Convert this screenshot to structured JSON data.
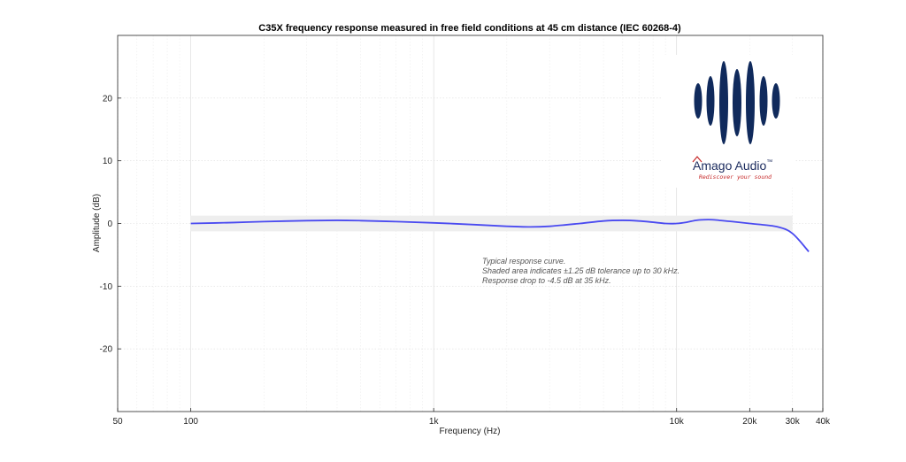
{
  "chart_data": {
    "type": "line",
    "title": "C35X frequency response measured in free field conditions at 45 cm distance (IEC 60268-4)",
    "xlabel": "Frequency (Hz)",
    "ylabel": "Amplitude (dB)",
    "xscale": "log",
    "xlim": [
      50,
      40000
    ],
    "ylim": [
      -30,
      30
    ],
    "xticks": [
      50,
      100,
      1000,
      10000,
      20000,
      30000,
      40000
    ],
    "xtick_labels": [
      "50",
      "100",
      "1k",
      "10k",
      "20k",
      "30k",
      "40k"
    ],
    "yticks": [
      -20,
      -10,
      0,
      10,
      20
    ],
    "ytick_labels": [
      "-20",
      "-10",
      "0",
      "10",
      "20"
    ],
    "grid": true,
    "series": [
      {
        "color": "#4a4af0",
        "x": [
          100,
          150,
          200,
          300,
          400,
          500,
          700,
          1000,
          1500,
          2000,
          2500,
          3000,
          4000,
          5000,
          6000,
          7000,
          8000,
          9000,
          10000,
          11000,
          12000,
          13000,
          14000,
          15000,
          17000,
          20000,
          25000,
          28000,
          30000,
          32000,
          35000
        ],
        "y": [
          0.0,
          0.15,
          0.3,
          0.45,
          0.5,
          0.45,
          0.3,
          0.1,
          -0.2,
          -0.45,
          -0.55,
          -0.45,
          0.0,
          0.4,
          0.5,
          0.4,
          0.2,
          0.0,
          0.0,
          0.2,
          0.5,
          0.6,
          0.6,
          0.5,
          0.3,
          0.0,
          -0.4,
          -0.9,
          -1.6,
          -2.7,
          -4.5
        ]
      }
    ],
    "tolerance_band": {
      "x_from": 100,
      "x_to": 30000,
      "y_low": -1.25,
      "y_high": 1.25,
      "color": "#eeeeee"
    },
    "annotations": [
      "Typical response curve.",
      "Shaded area indicates ±1.25 dB tolerance up to 30 kHz.",
      "Response drop to -4.5 dB at 35 kHz."
    ]
  },
  "logo": {
    "name": "Amago Audio",
    "trademark": "™",
    "tagline": "Rediscover your sound",
    "color": "#102a5c",
    "accent": "#c62828"
  }
}
